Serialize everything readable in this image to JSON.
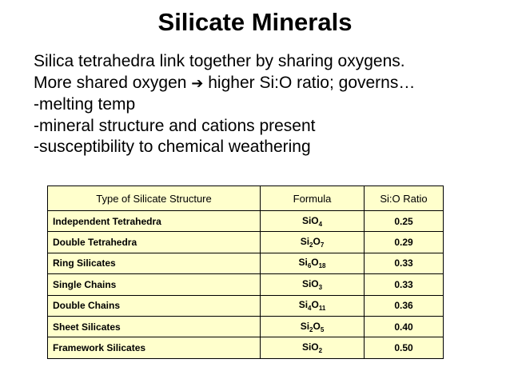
{
  "slide": {
    "title": "Silicate Minerals",
    "bullets": [
      "Silica tetrahedra link together by sharing oxygens.",
      "More shared oxygen",
      "higher Si:O ratio; governs…",
      "-melting temp",
      "-mineral structure and cations present",
      "-susceptibility to chemical weathering"
    ],
    "arrow_icon": "right-arrow-icon"
  },
  "table": {
    "headers": [
      "Type of Silicate Structure",
      "Formula",
      "Si:O Ratio"
    ],
    "background_color": "#ffffcc",
    "rows": [
      {
        "name": "Independent Tetrahedra",
        "formula": [
          [
            "SiO",
            "4"
          ]
        ],
        "ratio": "0.25"
      },
      {
        "name": "Double Tetrahedra",
        "formula": [
          [
            "Si",
            "2"
          ],
          [
            "O",
            "7"
          ]
        ],
        "ratio": "0.29"
      },
      {
        "name": "Ring Silicates",
        "formula": [
          [
            "Si",
            "6"
          ],
          [
            "O",
            "18"
          ]
        ],
        "ratio": "0.33"
      },
      {
        "name": "Single Chains",
        "formula": [
          [
            "SiO",
            "3"
          ]
        ],
        "ratio": "0.33"
      },
      {
        "name": "Double Chains",
        "formula": [
          [
            "Si",
            "4"
          ],
          [
            "O",
            "11"
          ]
        ],
        "ratio": "0.36"
      },
      {
        "name": "Sheet Silicates",
        "formula": [
          [
            "Si",
            "2"
          ],
          [
            "O",
            "5"
          ]
        ],
        "ratio": "0.40"
      },
      {
        "name": "Framework Silicates",
        "formula": [
          [
            "SiO",
            "2"
          ]
        ],
        "ratio": "0.50"
      }
    ]
  }
}
